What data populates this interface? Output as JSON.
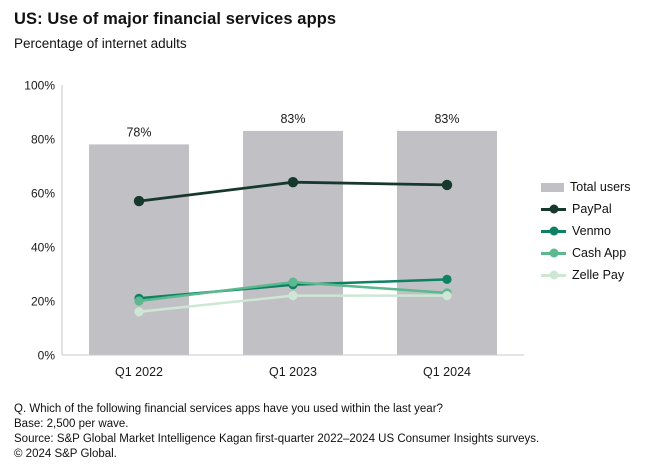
{
  "header": {
    "title": "US: Use of major financial services apps",
    "subtitle": "Percentage of internet adults"
  },
  "chart_data": {
    "type": "bar+line combo",
    "categories": [
      "Q1 2022",
      "Q1 2023",
      "Q1 2024"
    ],
    "bars": {
      "name": "Total users",
      "values": [
        78,
        83,
        83
      ],
      "labels": [
        "78%",
        "83%",
        "83%"
      ],
      "color": "#c1c1c5"
    },
    "series": [
      {
        "name": "PayPal",
        "values": [
          57,
          64,
          63
        ],
        "color": "#17382c"
      },
      {
        "name": "Venmo",
        "values": [
          21,
          26,
          28
        ],
        "color": "#0e8162"
      },
      {
        "name": "Cash App",
        "values": [
          20,
          27,
          23
        ],
        "color": "#5bb88f"
      },
      {
        "name": "Zelle Pay",
        "values": [
          16,
          22,
          22
        ],
        "color": "#cee7d5"
      }
    ],
    "y_axis": {
      "min": 0,
      "max": 100,
      "tick_values": [
        0,
        20,
        40,
        60,
        80,
        100
      ],
      "tick_labels": [
        "0%",
        "20%",
        "40%",
        "60%",
        "80%",
        "100%"
      ]
    },
    "legend": {
      "position": "right"
    },
    "grid": false,
    "axis_color": "#c9c9c9",
    "text_color": "#1a1a1a"
  },
  "footer": {
    "lines": [
      "Q. Which of the following financial services apps have you used within the last year?",
      "Base: 2,500 per wave.",
      "Source: S&P Global Market Intelligence Kagan first-quarter 2022–2024 US Consumer Insights surveys.",
      "© 2024 S&P Global."
    ]
  }
}
